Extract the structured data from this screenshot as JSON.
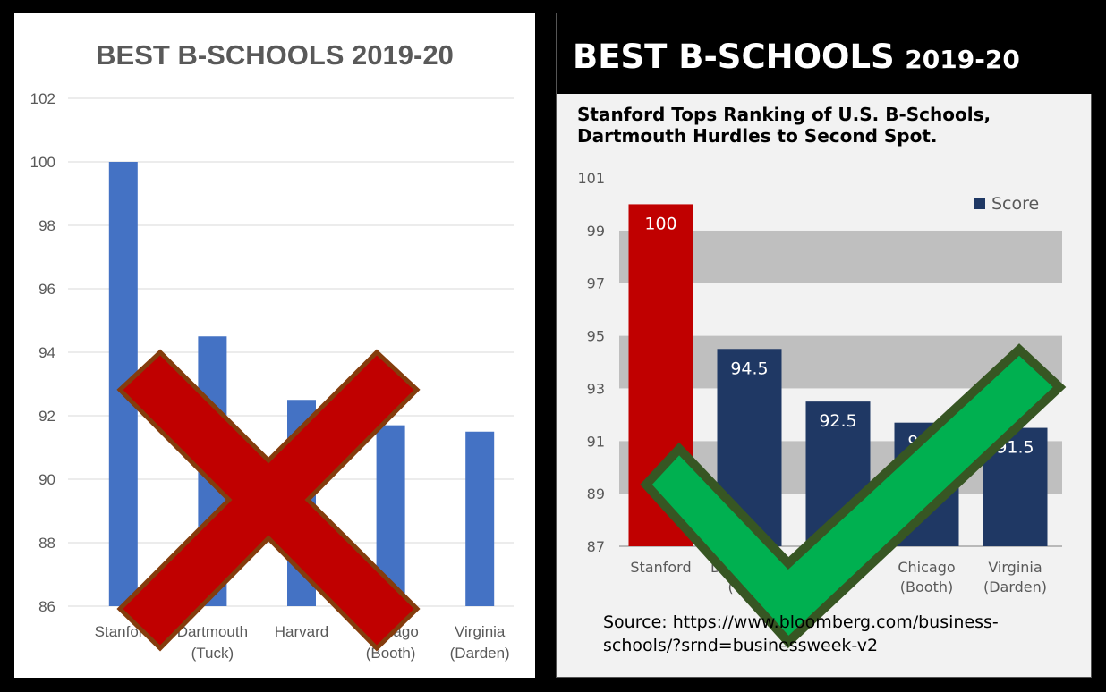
{
  "left": {
    "title": "BEST B-SCHOOLS 2019-20",
    "verdict": "x-mark-icon"
  },
  "right": {
    "banner_title": "BEST B-SCHOOLS",
    "banner_year": "2019-20",
    "subtitle_line1": "Stanford Tops Ranking of U.S. B-Schools,",
    "subtitle_line2": "Dartmouth Hurdles to Second Spot.",
    "legend_label": "Score",
    "source": "Source: https://www.bloomberg.com/business-schools/?srnd=businessweek-v2",
    "verdict": "check-mark-icon"
  },
  "colors": {
    "left_bar": "#4472c4",
    "right_highlight": "#c00000",
    "right_bar": "#1f3864",
    "x_mark": "#c00000",
    "check_mark": "#00b050"
  },
  "chart_data": [
    {
      "type": "bar",
      "title": "BEST B-SCHOOLS 2019-20",
      "categories": [
        [
          "Stanford"
        ],
        [
          "Dartmouth",
          "(Tuck)"
        ],
        [
          "Harvard"
        ],
        [
          "Chicago",
          "(Booth)"
        ],
        [
          "Virginia",
          "(Darden)"
        ]
      ],
      "values": [
        100,
        94.5,
        92.5,
        91.7,
        91.5
      ],
      "ylim": [
        86,
        102
      ],
      "yticks": [
        86,
        88,
        90,
        92,
        94,
        96,
        98,
        100,
        102
      ],
      "grid": true,
      "legend": "none"
    },
    {
      "type": "bar",
      "title": "Stanford Tops Ranking of U.S. B-Schools, Dartmouth Hurdles to Second Spot.",
      "categories": [
        [
          "Stanford"
        ],
        [
          "Dartmouth",
          "(Tuck)"
        ],
        [
          "Harvard"
        ],
        [
          "Chicago",
          "(Booth)"
        ],
        [
          "Virginia",
          "(Darden)"
        ]
      ],
      "series": [
        {
          "name": "Score",
          "values": [
            100,
            94.5,
            92.5,
            91.7,
            91.5
          ]
        }
      ],
      "data_labels": [
        "100",
        "94.5",
        "92.5",
        "91.7",
        "91.5"
      ],
      "ylim": [
        87,
        101
      ],
      "yticks": [
        87,
        89,
        91,
        93,
        95,
        97,
        99,
        101
      ],
      "grid": "banded",
      "legend": "top-right"
    }
  ]
}
